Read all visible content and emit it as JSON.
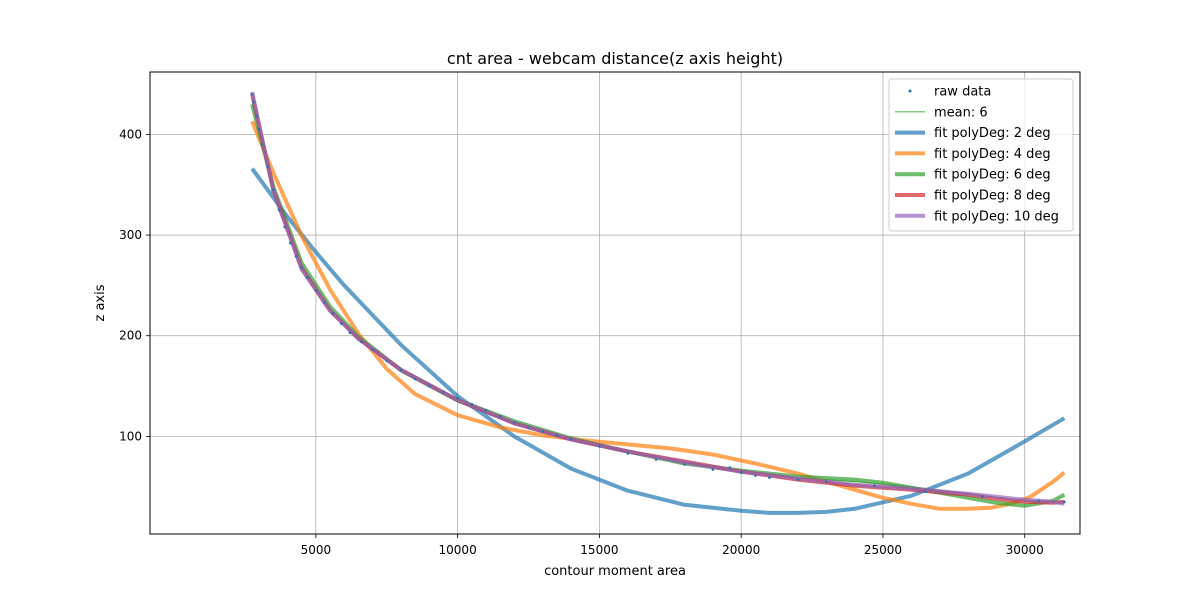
{
  "chart_data": {
    "type": "line",
    "title": "cnt area - webcam distance(z axis height)",
    "xlabel": "contour moment area",
    "ylabel": "z axis",
    "xlim": [
      -850,
      31950
    ],
    "ylim": [
      3,
      462
    ],
    "xticks": [
      5000,
      10000,
      15000,
      20000,
      25000,
      30000
    ],
    "yticks": [
      100,
      200,
      300,
      400
    ],
    "grid": true,
    "legend_position": "top-right",
    "colors": {
      "raw": "#1f77b4",
      "mean": "#2ca02c",
      "deg2": "#1f77b4",
      "deg4": "#ff7f0e",
      "deg6": "#2ca02c",
      "deg8": "#d62728",
      "deg10": "#9467bd"
    },
    "raw_data": {
      "name": "raw data",
      "x": [
        2750,
        2800,
        2900,
        3000,
        3100,
        3300,
        3500,
        3700,
        3900,
        4100,
        4300,
        4500,
        4700,
        5000,
        5300,
        5600,
        5900,
        6200,
        6600,
        7000,
        7500,
        8000,
        8500,
        9000,
        9500,
        10000,
        10500,
        11000,
        11500,
        12000,
        12500,
        13000,
        13500,
        14000,
        15000,
        16000,
        17000,
        18000,
        19000,
        19600,
        20000,
        20500,
        21000,
        22000,
        23000,
        24700,
        26500,
        28500,
        30500,
        31400
      ],
      "y": [
        440,
        432,
        418,
        405,
        390,
        368,
        345,
        325,
        308,
        292,
        279,
        268,
        258,
        245,
        233,
        222,
        212,
        203,
        194,
        186,
        175,
        166,
        157,
        150,
        144,
        138,
        132,
        126,
        120,
        114,
        109,
        105,
        101,
        97,
        90,
        83,
        77,
        72,
        67,
        69,
        64,
        61,
        59,
        57,
        55,
        51,
        45,
        40,
        36,
        35
      ]
    },
    "series": [
      {
        "name": "mean: 6",
        "x": [
          2750,
          3500,
          4500,
          5500,
          6500,
          8000,
          10000,
          12000,
          14000,
          16000,
          18000,
          20000,
          22000,
          24000,
          26000,
          28000,
          30000,
          31400
        ],
        "values": [
          435,
          345,
          268,
          226,
          197,
          164,
          134,
          112,
          96,
          84,
          74,
          66,
          59,
          55,
          50,
          43,
          36,
          35
        ]
      },
      {
        "name": "fit polyDeg: 2 deg",
        "x": [
          2750,
          4000,
          5000,
          6000,
          8000,
          10000,
          12000,
          14000,
          16000,
          18000,
          20000,
          21000,
          22000,
          23000,
          24000,
          26000,
          28000,
          30000,
          31400
        ],
        "values": [
          366,
          318,
          283,
          250,
          191,
          140,
          100,
          68,
          46,
          32,
          26,
          24,
          24,
          25,
          28,
          41,
          63,
          95,
          118
        ]
      },
      {
        "name": "fit polyDeg: 4 deg",
        "x": [
          2750,
          3500,
          4500,
          5500,
          6500,
          7500,
          8500,
          10000,
          11500,
          13000,
          14500,
          16000,
          17500,
          19000,
          20500,
          22000,
          23500,
          25000,
          26000,
          27000,
          28000,
          28800,
          29500,
          30200,
          31000,
          31400
        ],
        "values": [
          413,
          362,
          299,
          246,
          202,
          167,
          142,
          121,
          109,
          101,
          96,
          92,
          88,
          82,
          73,
          63,
          51,
          39,
          33,
          28,
          28,
          29,
          33,
          40,
          55,
          64
        ]
      },
      {
        "name": "fit polyDeg: 6 deg",
        "x": [
          2750,
          3500,
          4500,
          5500,
          6500,
          8000,
          10000,
          12000,
          14000,
          16000,
          18000,
          20000,
          22000,
          24000,
          25000,
          26000,
          27000,
          28000,
          29000,
          30000,
          31000,
          31400
        ],
        "values": [
          430,
          348,
          272,
          229,
          199,
          166,
          136,
          115,
          98,
          85,
          73,
          66,
          60,
          57,
          54,
          49,
          44,
          39,
          34,
          31,
          36,
          42
        ]
      },
      {
        "name": "fit polyDeg: 8 deg",
        "x": [
          2750,
          3500,
          4500,
          5500,
          6500,
          8000,
          10000,
          12000,
          14000,
          16000,
          18000,
          20000,
          22000,
          24000,
          26000,
          28000,
          29000,
          30000,
          31000,
          31400
        ],
        "values": [
          440,
          345,
          267,
          225,
          197,
          166,
          136,
          113,
          97,
          85,
          75,
          65,
          57,
          51,
          47,
          42,
          38,
          35,
          34,
          35
        ]
      },
      {
        "name": "fit polyDeg: 10 deg",
        "x": [
          2750,
          3500,
          4500,
          5500,
          6500,
          8000,
          10000,
          12000,
          14000,
          16000,
          18000,
          20000,
          22000,
          24000,
          26000,
          28000,
          29000,
          30000,
          31000,
          31400
        ],
        "values": [
          442,
          344,
          266,
          225,
          197,
          166,
          136,
          113,
          97,
          85,
          74,
          65,
          58,
          52,
          48,
          43,
          40,
          37,
          35,
          33
        ]
      }
    ]
  }
}
